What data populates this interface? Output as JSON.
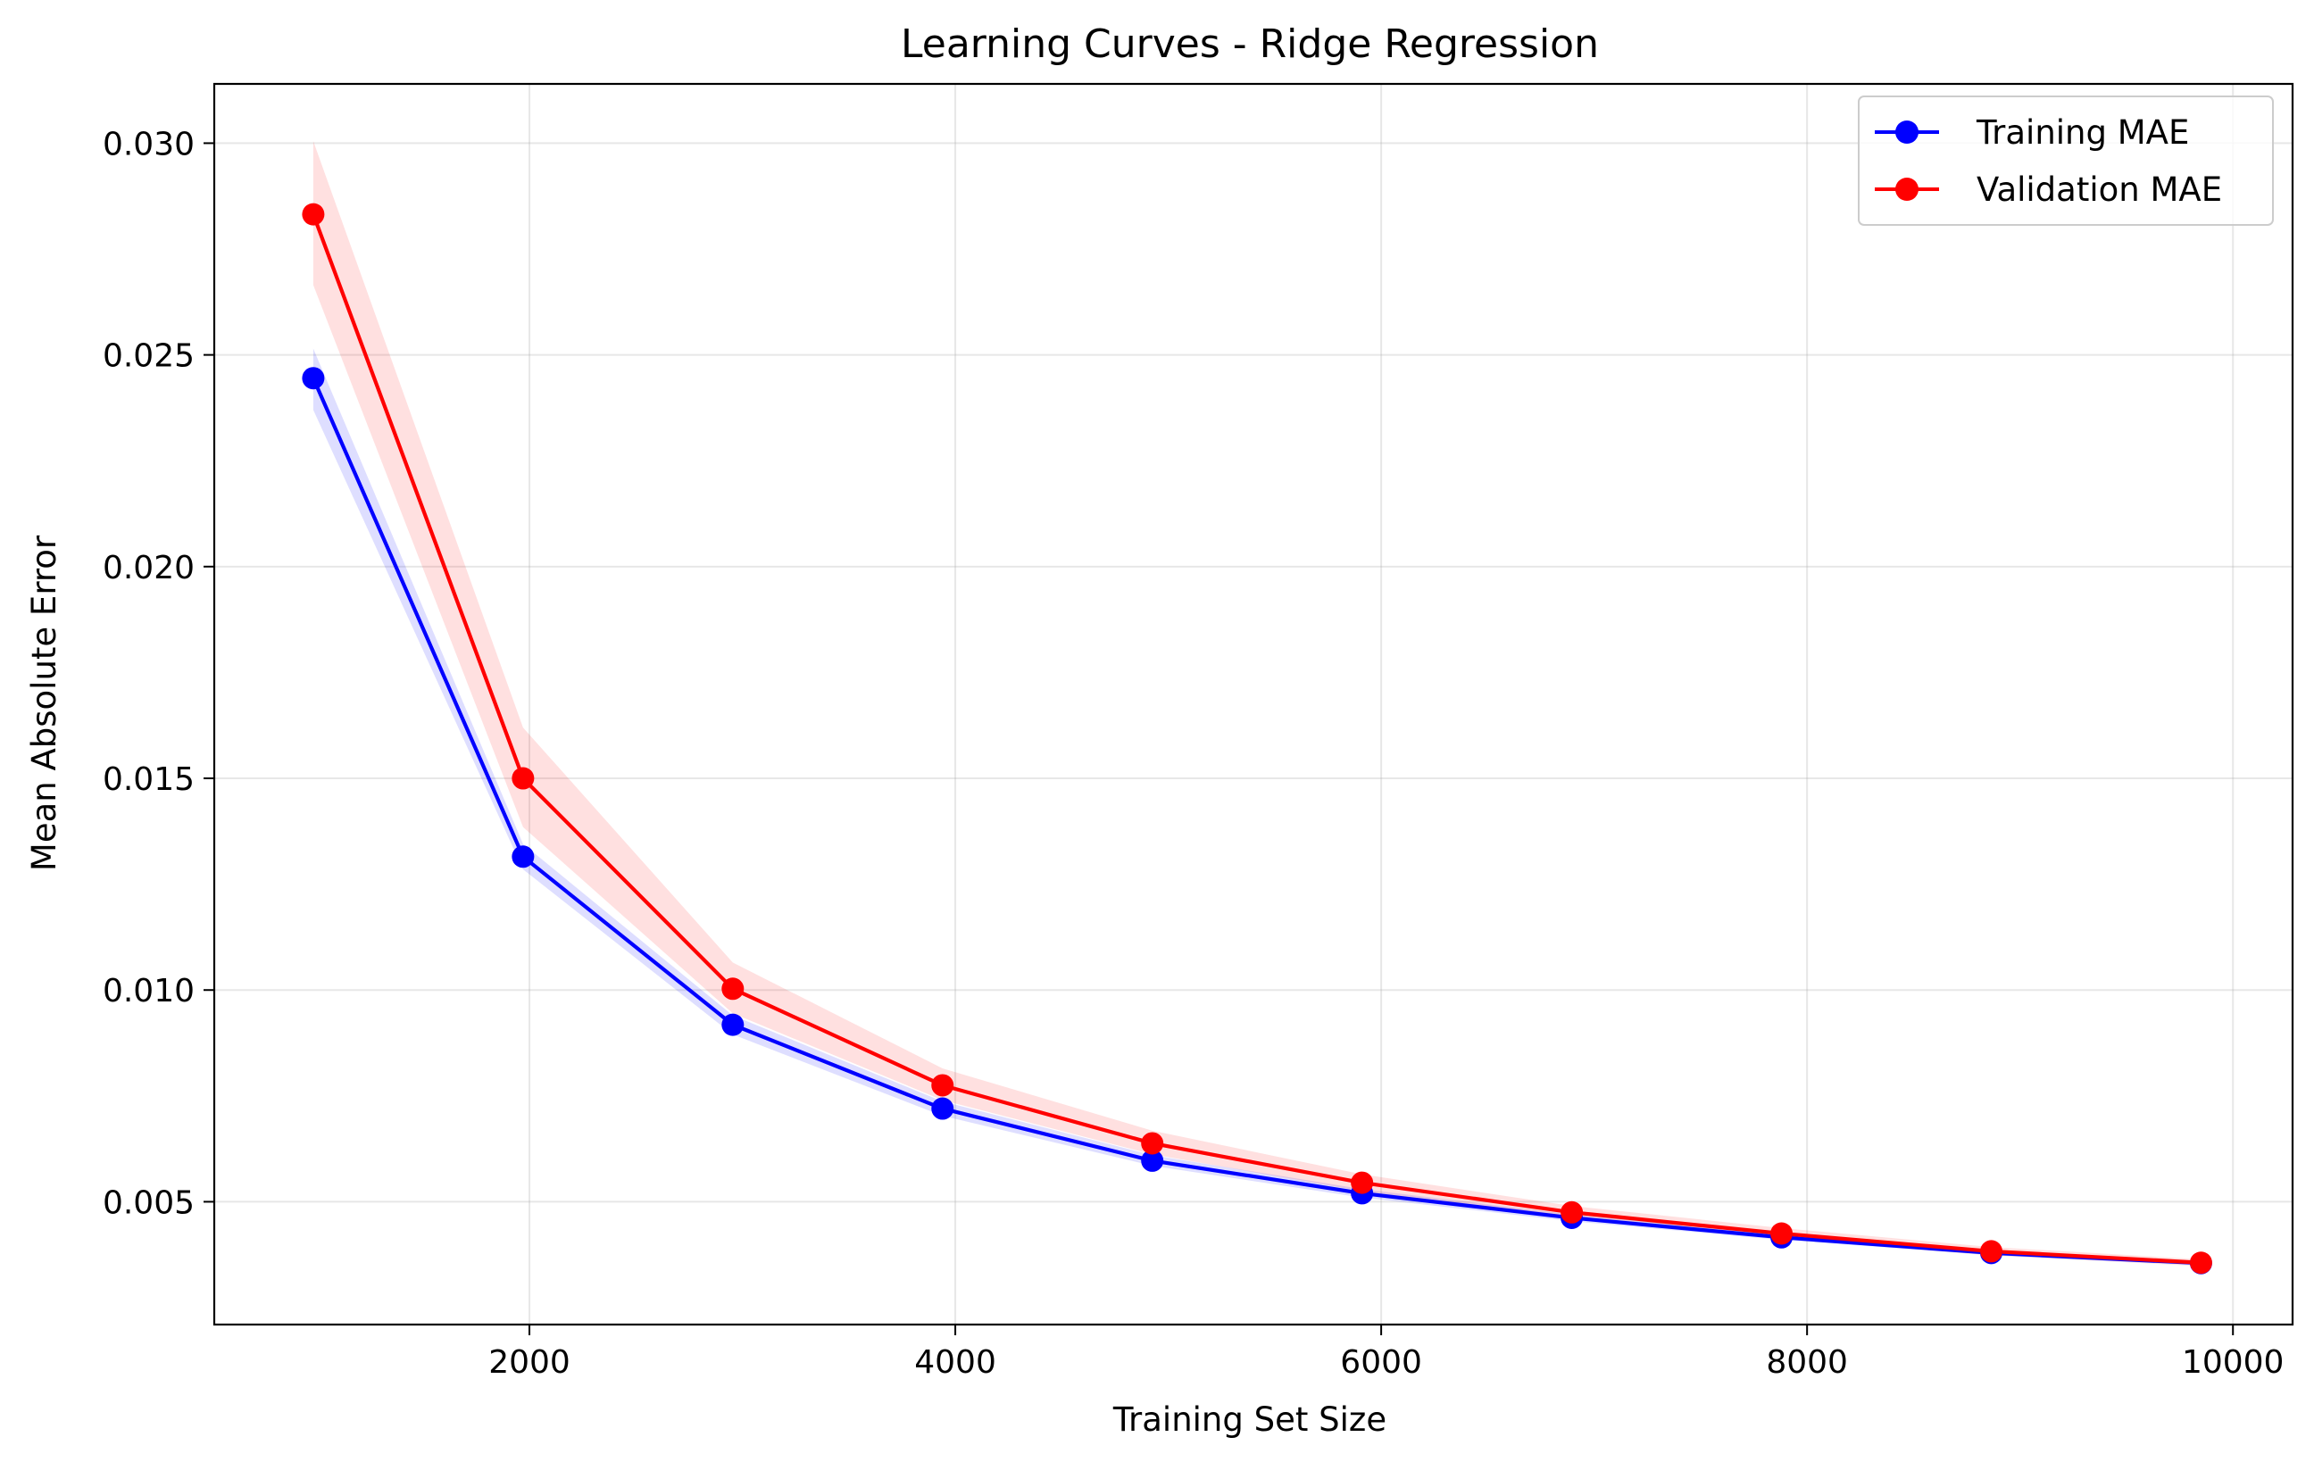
{
  "chart_data": {
    "type": "line",
    "title": "Learning Curves - Ridge Regression",
    "xlabel": "Training Set Size",
    "ylabel": "Mean Absolute Error",
    "xlim": [
      520,
      10280
    ],
    "ylim": [
      0.0021,
      0.0314
    ],
    "x_ticks": [
      2000,
      4000,
      6000,
      8000,
      10000
    ],
    "x_tick_labels": [
      "2000",
      "4000",
      "6000",
      "8000",
      "10000"
    ],
    "y_ticks": [
      0.005,
      0.01,
      0.015,
      0.02,
      0.025,
      0.03
    ],
    "y_tick_labels": [
      "0.005",
      "0.010",
      "0.015",
      "0.020",
      "0.025",
      "0.030"
    ],
    "grid": true,
    "legend_position": "top-right",
    "x": [
      985,
      1970,
      2955,
      3940,
      4925,
      5910,
      6895,
      7880,
      8865,
      9850
    ],
    "series": [
      {
        "name": "Training MAE",
        "color": "#0000ff",
        "band_color": "#0000ff",
        "values": [
          0.02445,
          0.01315,
          0.00918,
          0.0072,
          0.00597,
          0.0052,
          0.00462,
          0.00416,
          0.00379,
          0.00355
        ],
        "band_lower": [
          0.0237,
          0.01285,
          0.00895,
          0.00703,
          0.00585,
          0.0051,
          0.00454,
          0.0041,
          0.00374,
          0.0035
        ],
        "band_upper": [
          0.02515,
          0.01345,
          0.0094,
          0.00737,
          0.0061,
          0.0053,
          0.0047,
          0.00423,
          0.00384,
          0.0036
        ]
      },
      {
        "name": "Validation MAE",
        "color": "#ff0000",
        "band_color": "#ff0000",
        "values": [
          0.02832,
          0.015,
          0.01003,
          0.00775,
          0.00638,
          0.00545,
          0.00475,
          0.00425,
          0.00383,
          0.00356
        ],
        "band_lower": [
          0.02665,
          0.01385,
          0.00945,
          0.0074,
          0.00612,
          0.00525,
          0.0046,
          0.00413,
          0.00373,
          0.00348
        ],
        "band_upper": [
          0.03005,
          0.0162,
          0.01065,
          0.00815,
          0.00668,
          0.00565,
          0.0049,
          0.00438,
          0.00393,
          0.00364
        ]
      }
    ]
  }
}
